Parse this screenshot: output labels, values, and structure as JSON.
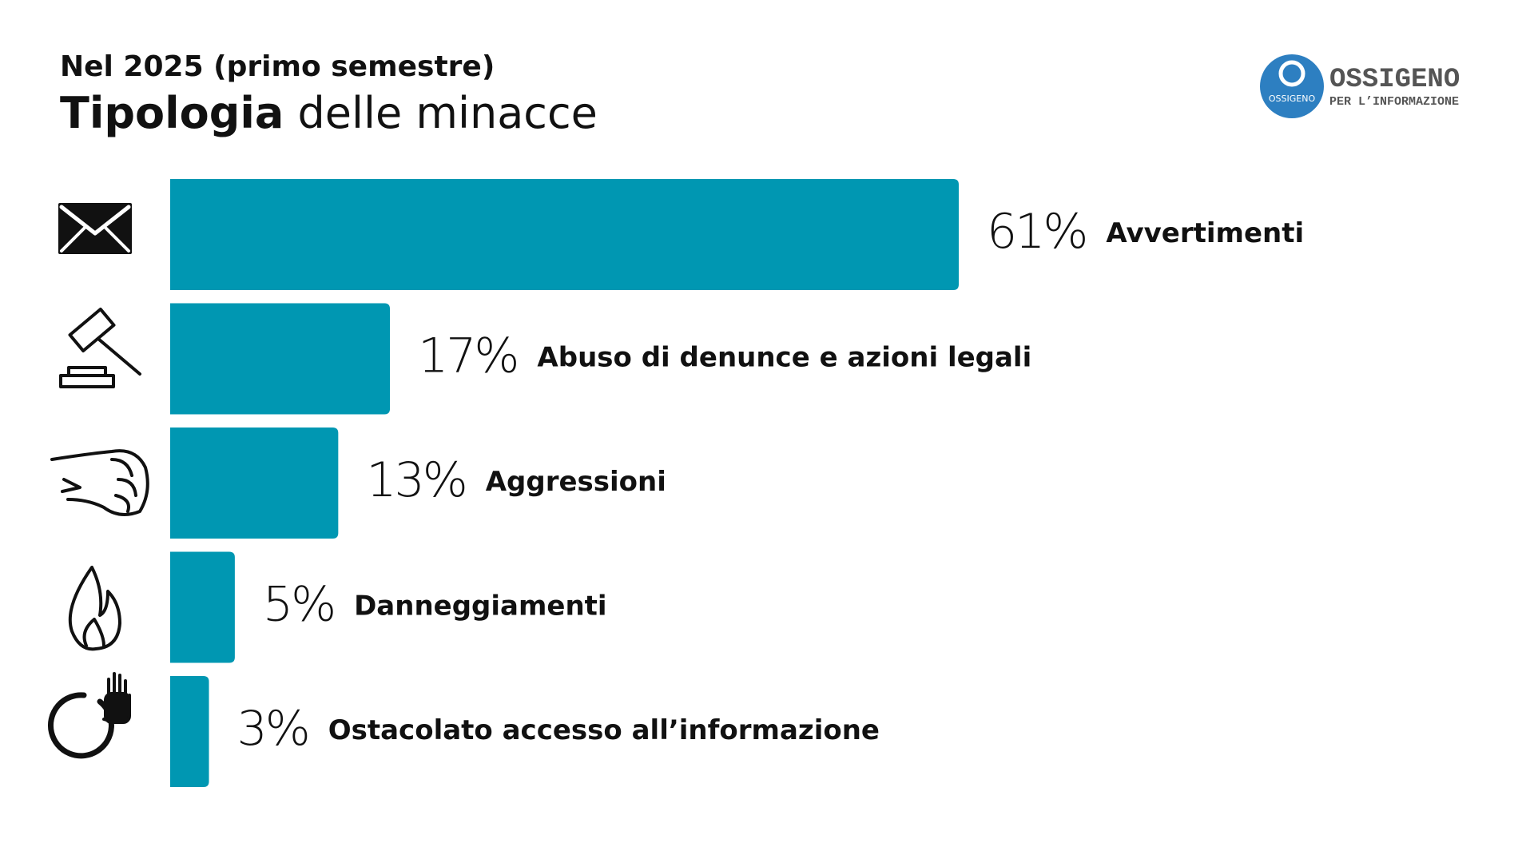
{
  "chart_data": {
    "type": "bar",
    "orientation": "horizontal",
    "subtitle": "Nel 2025 (primo semestre)",
    "title": [
      "Tipologia",
      "delle minacce"
    ],
    "categories": [
      "Avvertimenti",
      "Abuso di denunce e azioni legali",
      "Aggressioni",
      "Danneggiamenti",
      "Ostacolato accesso all’informazione"
    ],
    "values": [
      61,
      17,
      13,
      5,
      3
    ],
    "value_labels": [
      "61%",
      "17%",
      "13%",
      "5%",
      "3%"
    ],
    "color": "#0097b2"
  },
  "logo": {
    "name": "OSSIGENO",
    "tagline": "PER L’INFORMAZIONE",
    "badge": "OSSIGENO"
  }
}
